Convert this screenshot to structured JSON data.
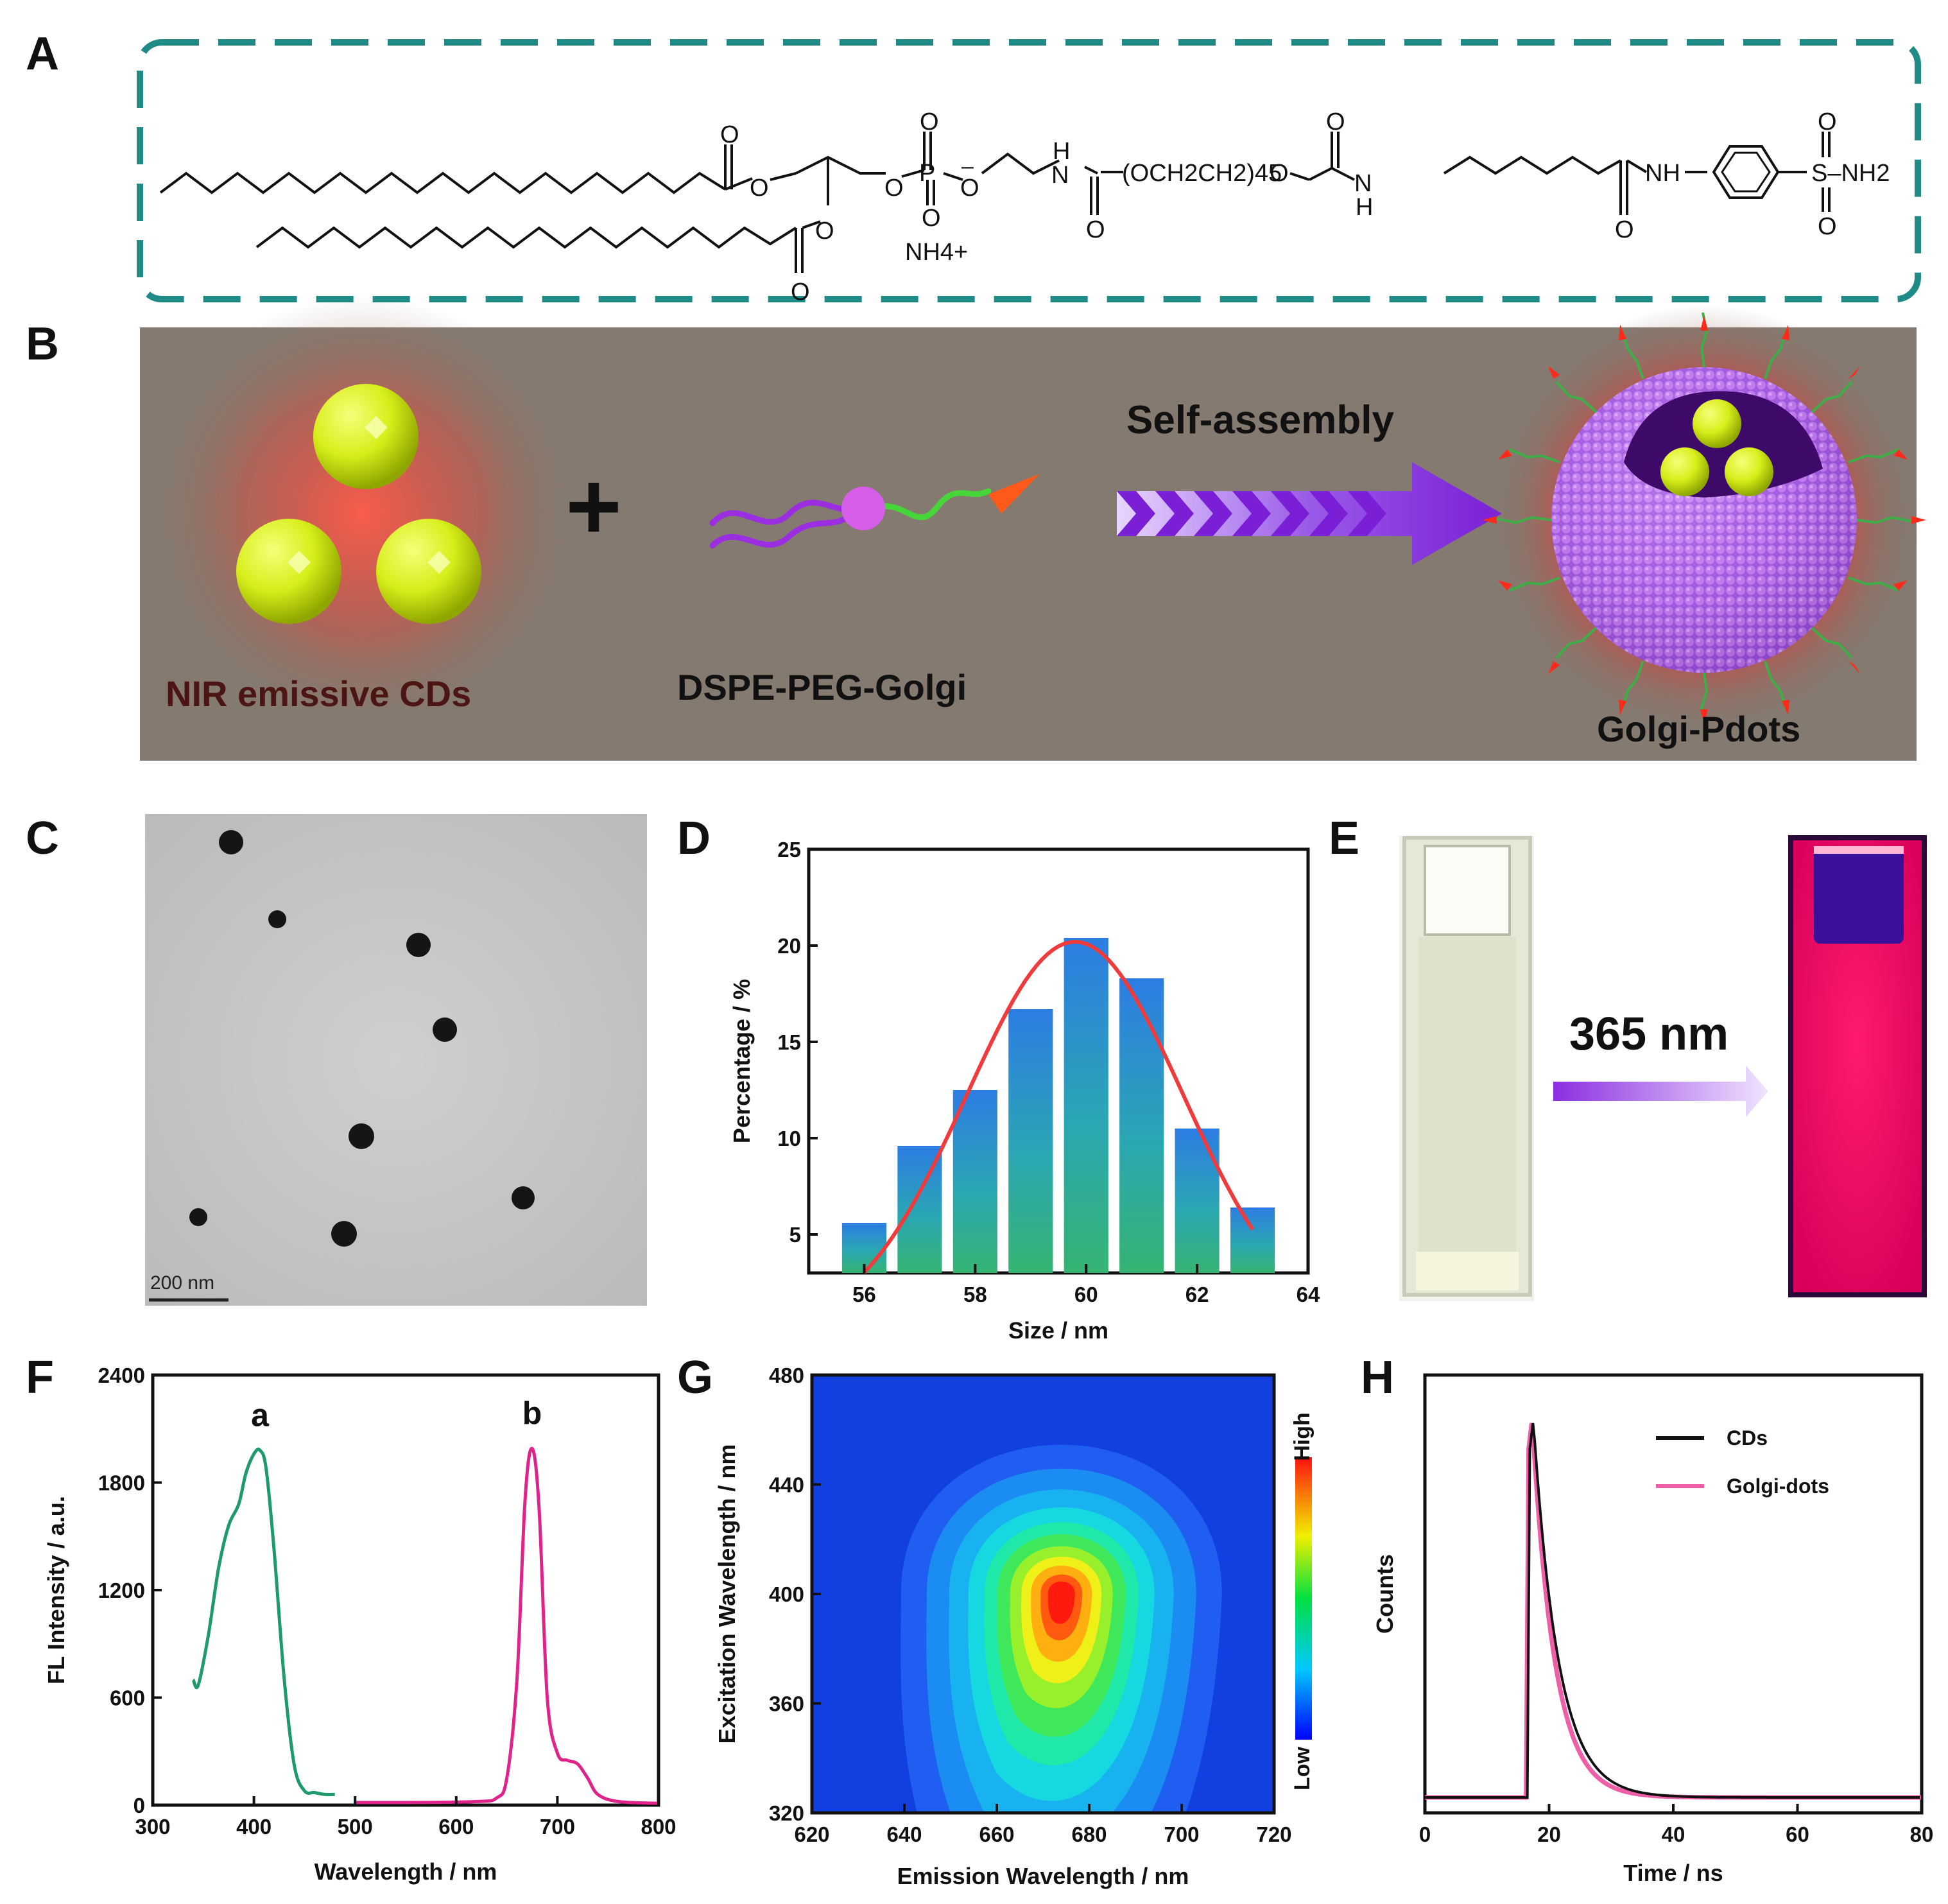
{
  "panels": {
    "A": "A",
    "B": "B",
    "C": "C",
    "D": "D",
    "E": "E",
    "F": "F",
    "G": "G",
    "H": "H"
  },
  "panel_a": {
    "structure": {
      "carbonyl_o": "O",
      "phosphate_p": "P",
      "minus": "–",
      "amide_h": "H",
      "nh": "N",
      "peg": "(OCH2CH2)45",
      "counterion": "NH4+",
      "aryl_amide": "NH",
      "sulfonamide": "S–NH2"
    }
  },
  "panel_b": {
    "label_cds": "NIR emissive CDs",
    "label_plus": "+",
    "label_dspe": "DSPE-PEG-Golgi",
    "label_arrow": "Self-assembly",
    "label_product": "Golgi-Pdots",
    "bg_color": "#847a70"
  },
  "panel_c": {
    "scale_bar": "200 nm"
  },
  "panel_e": {
    "arrow_label": "365 nm"
  },
  "chart_data": [
    {
      "id": "D",
      "type": "bar",
      "xlabel": "Size / nm",
      "ylabel": "Percentage / %",
      "xlim": [
        55,
        64
      ],
      "ylim": [
        3,
        25
      ],
      "xticks": [
        56,
        58,
        60,
        62,
        64
      ],
      "yticks": [
        5,
        10,
        15,
        20,
        25
      ],
      "categories": [
        56,
        57,
        58,
        59,
        60,
        61,
        62,
        63
      ],
      "values": [
        5.6,
        9.6,
        12.5,
        16.7,
        20.4,
        18.3,
        10.5,
        6.4
      ],
      "fit": {
        "type": "gaussian",
        "center": 59.8,
        "peak": 20.2,
        "sigma": 1.95,
        "color": "#ef3b3b"
      }
    },
    {
      "id": "F",
      "type": "line",
      "xlabel": "Wavelength / nm",
      "ylabel": "FL Intensity / a.u.",
      "xlim": [
        300,
        800
      ],
      "ylim": [
        0,
        2400
      ],
      "xticks": [
        300,
        400,
        500,
        600,
        700,
        800
      ],
      "yticks": [
        0,
        600,
        1200,
        1800,
        2400
      ],
      "series": [
        {
          "name": "a",
          "color": "#1f9a6a",
          "x": [
            340,
            345,
            355,
            365,
            375,
            385,
            392,
            400,
            406,
            412,
            420,
            430,
            440,
            450,
            460,
            470,
            480
          ],
          "y": [
            700,
            670,
            950,
            1320,
            1560,
            1680,
            1850,
            1960,
            1980,
            1880,
            1420,
            700,
            220,
            80,
            70,
            60,
            60
          ]
        },
        {
          "name": "b",
          "color": "#e0238a",
          "x": [
            500,
            560,
            620,
            640,
            650,
            660,
            668,
            675,
            682,
            690,
            700,
            710,
            720,
            730,
            740,
            760,
            800
          ],
          "y": [
            15,
            15,
            20,
            40,
            150,
            700,
            1700,
            1990,
            1650,
            600,
            290,
            250,
            230,
            150,
            60,
            20,
            10
          ]
        }
      ]
    },
    {
      "id": "G",
      "type": "heatmap",
      "xlabel": "Emission Wavelength / nm",
      "ylabel": "Excitation Wavelength / nm",
      "xlim": [
        620,
        720
      ],
      "ylim": [
        320,
        480
      ],
      "xticks": [
        620,
        640,
        660,
        680,
        700,
        720
      ],
      "yticks": [
        320,
        360,
        400,
        440,
        480
      ],
      "peak": {
        "em": 674,
        "ex": 400
      },
      "colorbar": {
        "high": "High",
        "low": "Low"
      }
    },
    {
      "id": "H",
      "type": "line",
      "xlabel": "Time / ns",
      "ylabel": "Counts",
      "xlim": [
        0,
        80
      ],
      "xticks": [
        0,
        20,
        40,
        60,
        80
      ],
      "series": [
        {
          "name": "CDs",
          "color": "#111111",
          "t0": 16.5,
          "tau": 4.0
        },
        {
          "name": "Golgi-dots",
          "color": "#ee5fa8",
          "t0": 16.3,
          "tau": 3.6
        }
      ]
    }
  ]
}
